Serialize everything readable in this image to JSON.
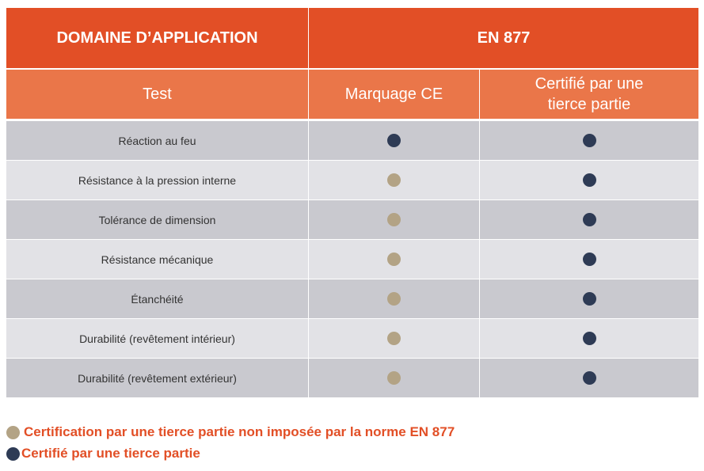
{
  "header": {
    "domain": "DOMAINE D’APPLICATION",
    "norm": "EN 877"
  },
  "columns": {
    "test": "Test",
    "ce": "Marquage CE",
    "third_party_line1": "Certifié par une",
    "third_party_line2": "tierce partie"
  },
  "rows": [
    {
      "test": "Réaction au feu",
      "ce": "navy",
      "third": "navy"
    },
    {
      "test": "Résistance à la pression interne",
      "ce": "beige",
      "third": "navy"
    },
    {
      "test": "Tolérance de dimension",
      "ce": "beige",
      "third": "navy"
    },
    {
      "test": "Résistance mécanique",
      "ce": "beige",
      "third": "navy"
    },
    {
      "test": "Étanchéité",
      "ce": "beige",
      "third": "navy"
    },
    {
      "test": "Durabilité (revêtement intérieur)",
      "ce": "beige",
      "third": "navy"
    },
    {
      "test": "Durabilité (revêtement extérieur)",
      "ce": "beige",
      "third": "navy"
    }
  ],
  "legend": {
    "beige": "Certification par une tierce partie non imposée par la norme EN 877",
    "navy": "Certifié par une tierce partie"
  },
  "colors": {
    "header": "#e24f26",
    "subheader": "#ea7649",
    "row_dark": "#c9c9cf",
    "row_light": "#e2e2e6",
    "dot_beige": "#b3a385",
    "dot_navy": "#2e3b55",
    "legend_text": "#e24f26"
  }
}
